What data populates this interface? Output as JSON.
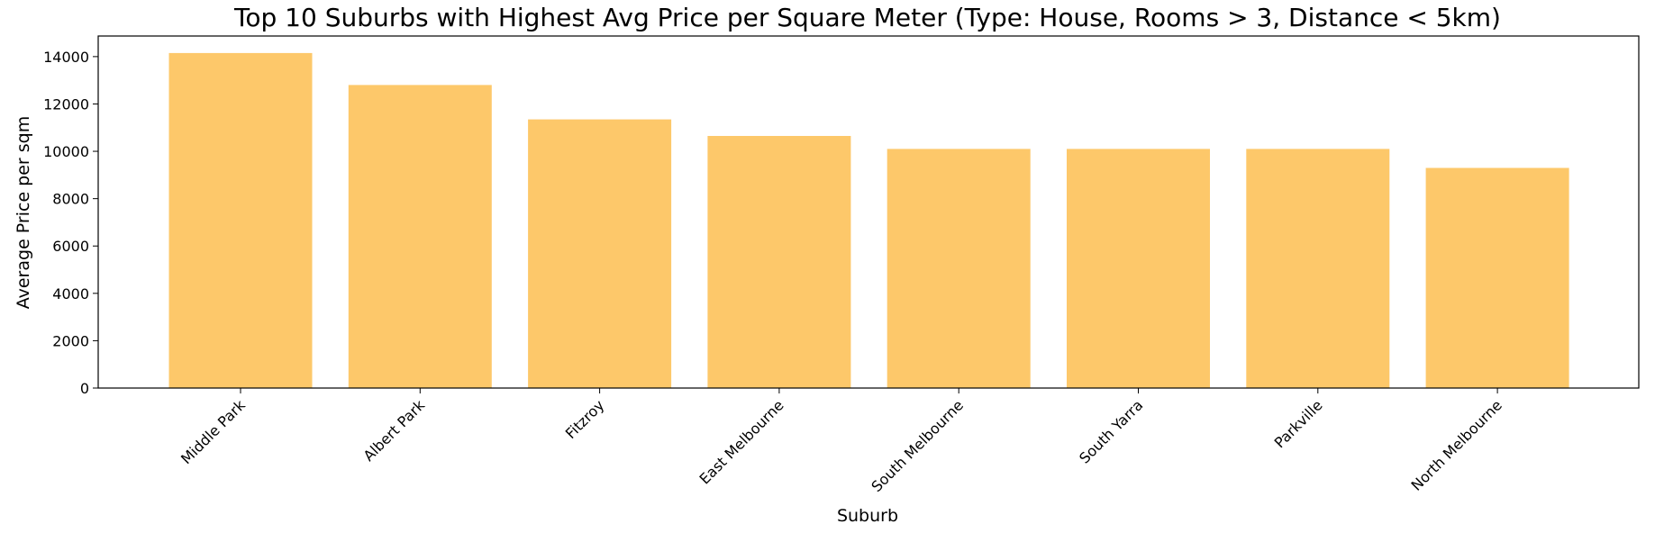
{
  "chart_data": {
    "type": "bar",
    "title": "Top 10 Suburbs with Highest Avg Price per Square Meter (Type: House, Rooms > 3, Distance < 5km)",
    "xlabel": "Suburb",
    "ylabel": "Average Price per sqm",
    "categories": [
      "Middle Park",
      "Albert Park",
      "Fitzroy",
      "East Melbourne",
      "South Melbourne",
      "South Yarra",
      "Parkville",
      "North Melbourne"
    ],
    "values": [
      14150,
      12800,
      11350,
      10650,
      10100,
      10100,
      10100,
      9300
    ],
    "ylim": [
      0,
      14870
    ],
    "yticks": [
      0,
      2000,
      4000,
      6000,
      8000,
      10000,
      12000,
      14000
    ],
    "bar_color": "#fdc86a",
    "grid": false,
    "legend": "none"
  }
}
